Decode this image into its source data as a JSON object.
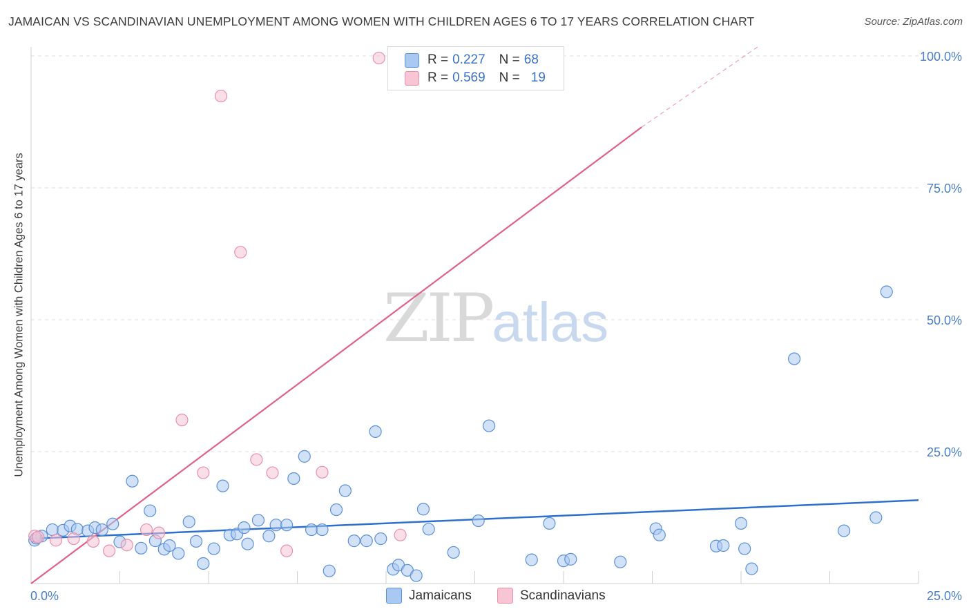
{
  "title": "JAMAICAN VS SCANDINAVIAN UNEMPLOYMENT AMONG WOMEN WITH CHILDREN AGES 6 TO 17 YEARS CORRELATION CHART",
  "source": "Source: ZipAtlas.com",
  "watermark": {
    "zip": "ZIP",
    "atlas": "atlas"
  },
  "legend": {
    "rows": [
      {
        "r_label": "R =",
        "r_value": "0.227",
        "n_label": "N =",
        "n_value": "68",
        "fill": "#aac9f2",
        "stroke": "#5b8fd6"
      },
      {
        "r_label": "R =",
        "r_value": "0.569",
        "n_label": "N =",
        "n_value": "19",
        "fill": "#f8bfd0",
        "stroke": "#e07a9c"
      }
    ]
  },
  "bottom_legend": {
    "jamaicans": "Jamaicans",
    "scandinavians": "Scandinavians"
  },
  "colors": {
    "jamaican_fill": "#aac9f2",
    "jamaican_stroke": "#5b8fd6",
    "jamaican_line": "#2d6fcc",
    "scandinavian_fill": "#f8c5d5",
    "scandinavian_stroke": "#e890ab",
    "scandinavian_line": "#e0608a",
    "grid": "#dcdcdc",
    "tick": "#4a7ec8"
  },
  "chart_data": {
    "type": "scatter",
    "title": "JAMAICAN VS SCANDINAVIAN UNEMPLOYMENT AMONG WOMEN WITH CHILDREN AGES 6 TO 17 YEARS CORRELATION CHART",
    "xlabel": "",
    "ylabel": "Unemployment Among Women with Children Ages 6 to 17 years",
    "xlim": [
      0,
      25
    ],
    "ylim": [
      0,
      100
    ],
    "x_ticks": [
      "0.0%",
      "25.0%"
    ],
    "y_ticks": [
      {
        "value": 25,
        "label": "25.0%"
      },
      {
        "value": 50,
        "label": "50.0%"
      },
      {
        "value": 75,
        "label": "75.0%"
      },
      {
        "value": 100,
        "label": "100.0%"
      }
    ],
    "grid": true,
    "legend_position": "top-center",
    "series": [
      {
        "name": "Jamaicans",
        "r": 0.227,
        "n": 68,
        "trend": {
          "x": [
            0,
            25
          ],
          "y": [
            8.5,
            15.8
          ]
        },
        "points": [
          [
            0.1,
            8.2
          ],
          [
            0.3,
            9.0
          ],
          [
            0.6,
            10.2
          ],
          [
            0.9,
            10.1
          ],
          [
            1.1,
            10.9
          ],
          [
            1.3,
            10.3
          ],
          [
            1.6,
            10.0
          ],
          [
            1.8,
            10.6
          ],
          [
            2.0,
            10.2
          ],
          [
            2.3,
            11.3
          ],
          [
            2.5,
            7.9
          ],
          [
            2.85,
            19.4
          ],
          [
            3.1,
            6.7
          ],
          [
            3.35,
            13.8
          ],
          [
            3.5,
            8.1
          ],
          [
            3.75,
            6.5
          ],
          [
            3.9,
            7.2
          ],
          [
            4.15,
            5.7
          ],
          [
            4.45,
            11.7
          ],
          [
            4.65,
            8.0
          ],
          [
            4.85,
            3.8
          ],
          [
            5.15,
            6.6
          ],
          [
            5.4,
            18.5
          ],
          [
            5.6,
            9.2
          ],
          [
            5.8,
            9.4
          ],
          [
            6.0,
            10.6
          ],
          [
            6.1,
            7.5
          ],
          [
            6.4,
            12.0
          ],
          [
            6.7,
            9.0
          ],
          [
            6.9,
            11.1
          ],
          [
            7.2,
            11.1
          ],
          [
            7.4,
            19.9
          ],
          [
            7.7,
            24.1
          ],
          [
            7.9,
            10.2
          ],
          [
            8.2,
            10.2
          ],
          [
            8.4,
            2.4
          ],
          [
            8.6,
            14.0
          ],
          [
            8.85,
            17.6
          ],
          [
            9.1,
            8.1
          ],
          [
            9.45,
            8.1
          ],
          [
            9.7,
            28.8
          ],
          [
            9.85,
            8.5
          ],
          [
            10.2,
            2.7
          ],
          [
            10.35,
            3.5
          ],
          [
            10.6,
            2.5
          ],
          [
            10.85,
            1.5
          ],
          [
            11.05,
            14.1
          ],
          [
            11.2,
            10.3
          ],
          [
            11.9,
            5.9
          ],
          [
            12.6,
            11.9
          ],
          [
            12.9,
            29.9
          ],
          [
            14.1,
            4.5
          ],
          [
            14.6,
            11.4
          ],
          [
            15.0,
            4.3
          ],
          [
            15.2,
            4.6
          ],
          [
            16.6,
            4.1
          ],
          [
            17.6,
            10.4
          ],
          [
            17.7,
            9.2
          ],
          [
            19.3,
            7.1
          ],
          [
            19.5,
            7.2
          ],
          [
            20.0,
            11.4
          ],
          [
            20.1,
            6.6
          ],
          [
            20.3,
            2.8
          ],
          [
            21.5,
            42.6
          ],
          [
            22.9,
            10.0
          ],
          [
            23.8,
            12.5
          ],
          [
            24.1,
            55.3
          ],
          [
            0.15,
            8.6
          ]
        ]
      },
      {
        "name": "Scandinavians",
        "r": 0.569,
        "n": 19,
        "trend": {
          "x": [
            0,
            17.2
          ],
          "y": [
            0,
            86.5
          ]
        },
        "trend_dashed": {
          "x": [
            17.2,
            24.4
          ],
          "y": [
            86.5,
            120
          ]
        },
        "points": [
          [
            0.1,
            9.0
          ],
          [
            0.7,
            8.2
          ],
          [
            1.2,
            8.5
          ],
          [
            1.75,
            8.0
          ],
          [
            2.2,
            6.2
          ],
          [
            2.7,
            7.3
          ],
          [
            3.25,
            10.2
          ],
          [
            3.6,
            9.6
          ],
          [
            4.25,
            31.0
          ],
          [
            4.85,
            21.0
          ],
          [
            5.35,
            92.4
          ],
          [
            5.9,
            62.8
          ],
          [
            6.35,
            23.5
          ],
          [
            6.8,
            21.0
          ],
          [
            7.2,
            6.2
          ],
          [
            8.2,
            21.1
          ],
          [
            9.8,
            99.6
          ],
          [
            10.4,
            9.2
          ],
          [
            0.2,
            8.8
          ]
        ]
      }
    ]
  }
}
